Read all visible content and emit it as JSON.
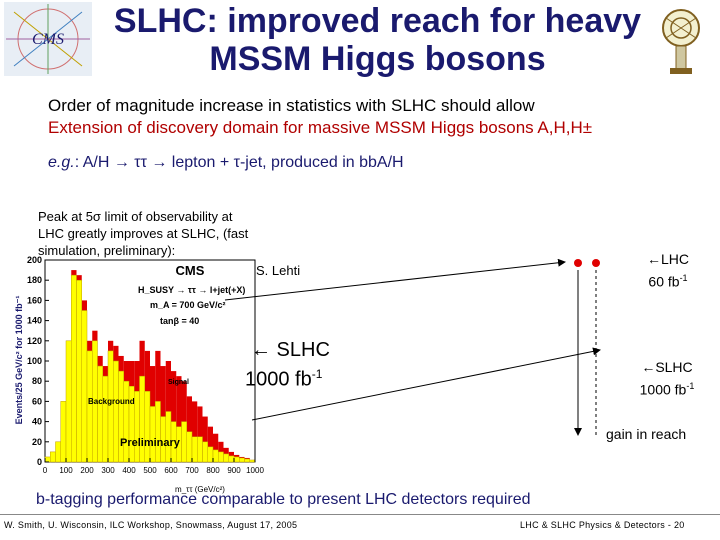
{
  "slide": {
    "title": "SLHC: improved reach for heavy MSSM Higgs bosons",
    "line1": "Order of magnitude increase in statistics with SLHC should allow",
    "line2": "Extension of discovery domain for massive MSSM Higgs bosons A,H,H±",
    "eg_prefix": "e.g.",
    "eg_text": ": A/H → ττ → lepton + τ-jet, produced in bbA/H",
    "peak_note": "Peak at 5σ limit of observability at LHC greatly improves at SLHC, (fast simulation, preliminary):",
    "author": "S. Lehti",
    "slhc_big": "← SLHC",
    "slhc_big_lumi": "1000 fb",
    "slhc_big_exp": "-1",
    "lhc_label": "←LHC",
    "lhc_lumi": "60 fb",
    "lhc_exp": "-1",
    "slhc_label": "←SLHC",
    "slhc_lumi": "1000 fb",
    "slhc_exp": "-1",
    "gain": "gain in reach",
    "btag": "b-tagging performance comparable to present LHC detectors required",
    "footer_left": "W. Smith, U. Wisconsin, ILC Workshop, Snowmass, August 17, 2005",
    "footer_right": "LHC & SLHC Physics & Detectors - 20"
  },
  "colors": {
    "title": "#1a1a6e",
    "highlight": "#b00000",
    "signal": "#e00000",
    "background": "#ffff00",
    "plot_bg": "#ffffff"
  },
  "logos": {
    "left": "cms-logo",
    "right": "detector-figure-logo"
  },
  "chart_data": {
    "type": "bar",
    "title": "CMS",
    "annotations": [
      "H_SUSY → ττ → l+jet(+X)",
      "m_A = 700 GeV/c²",
      "tanβ = 40",
      "Signal",
      "Background",
      "Preliminary"
    ],
    "xlabel": "m_ττ (GeV/c²)",
    "ylabel": "Events/25 GeV/c² for 1000 fb⁻¹",
    "xlim": [
      0,
      1000
    ],
    "ylim": [
      0,
      200
    ],
    "xticks": [
      0,
      100,
      200,
      300,
      400,
      500,
      600,
      700,
      800,
      900,
      1000
    ],
    "yticks": [
      0,
      20,
      40,
      60,
      80,
      100,
      120,
      140,
      160,
      180,
      200
    ],
    "bin_width": 25,
    "series": [
      {
        "name": "Background",
        "values": [
          5,
          10,
          20,
          60,
          120,
          185,
          180,
          150,
          110,
          120,
          95,
          85,
          110,
          100,
          90,
          80,
          75,
          70,
          85,
          70,
          55,
          60,
          45,
          50,
          40,
          35,
          40,
          30,
          25,
          25,
          20,
          15,
          12,
          10,
          8,
          6,
          5,
          4,
          3,
          2
        ]
      },
      {
        "name": "Signal",
        "values": [
          5,
          10,
          20,
          60,
          120,
          190,
          185,
          160,
          120,
          130,
          105,
          95,
          120,
          115,
          105,
          100,
          100,
          100,
          120,
          110,
          95,
          110,
          95,
          100,
          90,
          85,
          80,
          65,
          60,
          55,
          45,
          35,
          28,
          20,
          14,
          10,
          7,
          5,
          4,
          2
        ]
      }
    ]
  }
}
